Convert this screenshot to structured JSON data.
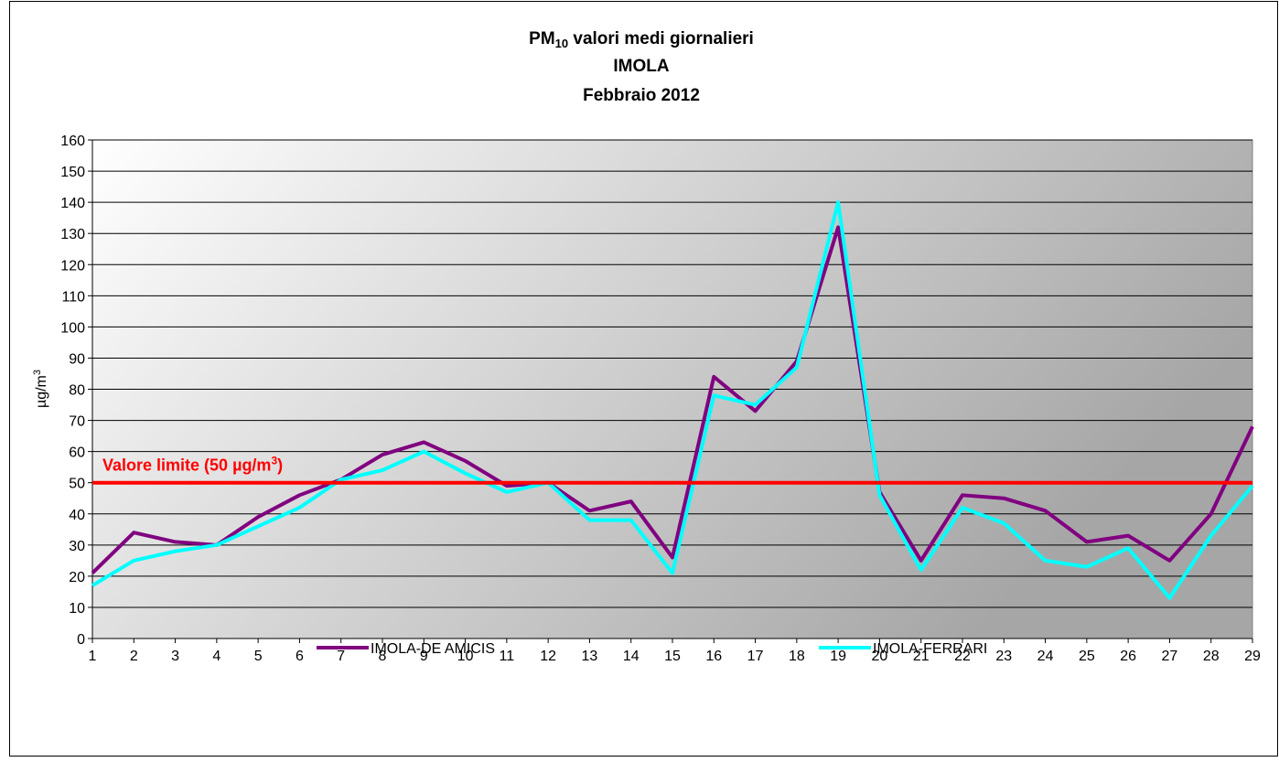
{
  "chart_data": {
    "type": "line",
    "title": {
      "prefix": "PM",
      "subscript": "10",
      "rest": " valori medi giornalieri",
      "lines": [
        "IMOLA",
        "Febbraio 2012"
      ]
    },
    "y_label": {
      "text": "µg/m",
      "superscript": "3"
    },
    "categories": [
      "1",
      "2",
      "3",
      "4",
      "5",
      "6",
      "7",
      "8",
      "9",
      "10",
      "11",
      "12",
      "13",
      "14",
      "15",
      "16",
      "17",
      "18",
      "19",
      "20",
      "21",
      "22",
      "23",
      "24",
      "25",
      "26",
      "27",
      "28",
      "29"
    ],
    "series": [
      {
        "name": "IMOLA-DE AMICIS",
        "color": "#800080",
        "values": [
          21,
          34,
          31,
          30,
          39,
          46,
          51,
          59,
          63,
          57,
          49,
          50,
          41,
          44,
          26,
          84,
          73,
          89,
          132,
          47,
          25,
          46,
          45,
          41,
          31,
          33,
          25,
          40,
          68
        ]
      },
      {
        "name": "IMOLA-FERRARI",
        "color": "#00ffff",
        "values": [
          17,
          25,
          28,
          30,
          36,
          42,
          51,
          54,
          60,
          53,
          47,
          50,
          38,
          38,
          21,
          78,
          75,
          87,
          140,
          46,
          22,
          42,
          37,
          25,
          23,
          29,
          13,
          33,
          49
        ]
      }
    ],
    "threshold": {
      "value": 50,
      "color": "#ff0000",
      "label": "Valore limite  (50 µg/m",
      "label_superscript": "3",
      "label_end": ")"
    },
    "ylim": [
      0,
      160
    ],
    "yticks": [
      0,
      10,
      20,
      30,
      40,
      50,
      60,
      70,
      80,
      90,
      100,
      110,
      120,
      130,
      140,
      150,
      160
    ],
    "grid": true,
    "legend": "bottom"
  }
}
